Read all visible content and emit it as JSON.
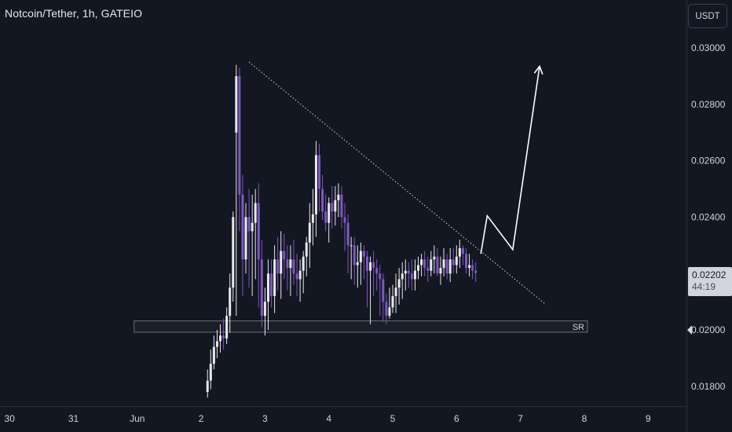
{
  "header": {
    "title": "Notcoin/Tether, 1h, GATEIO",
    "currency_button": "USDT"
  },
  "price_tag": {
    "price": "0.02202",
    "countdown": "44:19"
  },
  "colors": {
    "background": "#131722",
    "up_candle": "#e8e8ec",
    "down_candle": "#7e57c2",
    "grid": "#1e222d",
    "text": "#d1d4dc"
  },
  "chart_data": {
    "type": "candlestick",
    "title": "Notcoin/Tether, 1h, GATEIO",
    "y_ticks": [
      "0.03000",
      "0.02800",
      "0.02600",
      "0.02400",
      "0.02000",
      "0.01800"
    ],
    "y_tick_values": [
      0.03,
      0.028,
      0.026,
      0.024,
      0.02,
      0.018
    ],
    "ylim": [
      0.0173,
      0.0317
    ],
    "x_ticks": [
      "30",
      "31",
      "Jun",
      "2",
      "3",
      "4",
      "5",
      "6",
      "7",
      "8",
      "9"
    ],
    "x_tick_days": [
      -2,
      -1,
      0,
      1,
      2,
      3,
      4,
      5,
      6,
      7,
      8
    ],
    "xlim": [
      -2.15,
      8.6
    ],
    "grid": false,
    "last_price": 0.02202,
    "series": [
      {
        "name": "",
        "x_days": [
          1.1,
          1.15,
          1.2,
          1.25,
          1.3,
          1.35,
          1.4,
          1.45,
          1.5,
          1.55,
          1.6,
          1.65,
          1.7,
          1.75,
          1.8,
          1.85,
          1.9,
          1.95,
          2.0,
          2.05,
          2.1,
          2.15,
          2.2,
          2.25,
          2.3,
          2.35,
          2.4,
          2.45,
          2.5,
          2.55,
          2.6,
          2.65,
          2.7,
          2.75,
          2.8,
          2.85,
          2.9,
          2.95,
          3.0,
          3.05,
          3.1,
          3.15,
          3.2,
          3.25,
          3.3,
          3.35,
          3.4,
          3.45,
          3.5,
          3.55,
          3.6,
          3.65,
          3.7,
          3.75,
          3.8,
          3.85,
          3.9,
          3.95,
          4.0,
          4.05,
          4.1,
          4.15,
          4.2,
          4.25,
          4.3,
          4.35,
          4.4,
          4.45,
          4.5,
          4.55,
          4.6,
          4.65,
          4.7,
          4.75,
          4.8,
          4.85,
          4.9,
          4.95,
          5.0,
          5.05,
          5.1,
          5.15,
          5.2,
          5.25,
          5.3
        ],
        "open": [
          0.0178,
          0.0182,
          0.0188,
          0.0194,
          0.0196,
          0.0198,
          0.0197,
          0.0205,
          0.0215,
          0.027,
          0.029,
          0.0248,
          0.0225,
          0.024,
          0.0235,
          0.0238,
          0.0245,
          0.0225,
          0.0205,
          0.021,
          0.022,
          0.0212,
          0.0225,
          0.022,
          0.0228,
          0.0225,
          0.0222,
          0.0225,
          0.022,
          0.0218,
          0.0221,
          0.0226,
          0.0231,
          0.0238,
          0.0241,
          0.0262,
          0.025,
          0.0242,
          0.0238,
          0.0245,
          0.0242,
          0.0246,
          0.0248,
          0.024,
          0.0238,
          0.023,
          0.023,
          0.0223,
          0.0224,
          0.0228,
          0.0226,
          0.0221,
          0.0224,
          0.0222,
          0.022,
          0.0218,
          0.021,
          0.0205,
          0.0208,
          0.0212,
          0.0215,
          0.0218,
          0.022,
          0.0221,
          0.022,
          0.0218,
          0.0221,
          0.0223,
          0.0225,
          0.0222,
          0.0221,
          0.0225,
          0.0226,
          0.022,
          0.0222,
          0.0225,
          0.022,
          0.0225,
          0.0223,
          0.0226,
          0.0229,
          0.0227,
          0.0222,
          0.0223,
          0.0221
        ],
        "high": [
          0.0186,
          0.0193,
          0.0198,
          0.02,
          0.0202,
          0.0204,
          0.0208,
          0.022,
          0.0242,
          0.0294,
          0.0293,
          0.0255,
          0.0245,
          0.025,
          0.0248,
          0.025,
          0.0252,
          0.0232,
          0.0215,
          0.0225,
          0.0225,
          0.023,
          0.0233,
          0.0235,
          0.0234,
          0.023,
          0.023,
          0.0232,
          0.0227,
          0.0225,
          0.0228,
          0.0233,
          0.0245,
          0.025,
          0.0267,
          0.0266,
          0.0255,
          0.0248,
          0.0247,
          0.0251,
          0.0251,
          0.0252,
          0.0251,
          0.0245,
          0.0241,
          0.0233,
          0.0233,
          0.023,
          0.0231,
          0.023,
          0.0228,
          0.0226,
          0.0228,
          0.0225,
          0.0223,
          0.022,
          0.0213,
          0.0215,
          0.0216,
          0.022,
          0.0222,
          0.0224,
          0.0225,
          0.0224,
          0.0225,
          0.0225,
          0.0226,
          0.0227,
          0.0228,
          0.0226,
          0.0228,
          0.023,
          0.0229,
          0.0226,
          0.0229,
          0.0227,
          0.0229,
          0.0229,
          0.023,
          0.0232,
          0.023,
          0.0229,
          0.0227,
          0.0225,
          0.0224
        ],
        "low": [
          0.0176,
          0.0179,
          0.0186,
          0.019,
          0.0192,
          0.0193,
          0.0195,
          0.0199,
          0.021,
          0.0205,
          0.0235,
          0.0212,
          0.022,
          0.0215,
          0.0212,
          0.0218,
          0.0208,
          0.0201,
          0.0198,
          0.02,
          0.0208,
          0.0206,
          0.0214,
          0.0211,
          0.0218,
          0.0214,
          0.0212,
          0.0216,
          0.0212,
          0.021,
          0.0213,
          0.0219,
          0.0222,
          0.023,
          0.0233,
          0.0242,
          0.0239,
          0.0235,
          0.0231,
          0.0236,
          0.0237,
          0.024,
          0.0236,
          0.0228,
          0.022,
          0.0218,
          0.0216,
          0.0215,
          0.0216,
          0.0218,
          0.0208,
          0.0202,
          0.0212,
          0.0214,
          0.0205,
          0.0203,
          0.0202,
          0.0204,
          0.0206,
          0.0206,
          0.0209,
          0.0211,
          0.0214,
          0.0215,
          0.0214,
          0.0214,
          0.0218,
          0.0219,
          0.0219,
          0.0217,
          0.0219,
          0.022,
          0.0219,
          0.0216,
          0.0219,
          0.0218,
          0.0217,
          0.022,
          0.022,
          0.0222,
          0.0223,
          0.022,
          0.0219,
          0.0218,
          0.0217
        ],
        "close": [
          0.0182,
          0.0188,
          0.0194,
          0.0196,
          0.0198,
          0.0197,
          0.0205,
          0.0215,
          0.024,
          0.029,
          0.0248,
          0.0225,
          0.024,
          0.0235,
          0.0238,
          0.0245,
          0.0225,
          0.0205,
          0.021,
          0.022,
          0.0212,
          0.0225,
          0.022,
          0.0228,
          0.0225,
          0.0222,
          0.0225,
          0.022,
          0.0218,
          0.0221,
          0.0226,
          0.0231,
          0.0238,
          0.0241,
          0.0262,
          0.025,
          0.0242,
          0.0238,
          0.0245,
          0.0242,
          0.0246,
          0.0248,
          0.024,
          0.0238,
          0.023,
          0.023,
          0.0223,
          0.0224,
          0.0228,
          0.0226,
          0.0221,
          0.0224,
          0.0222,
          0.022,
          0.0218,
          0.021,
          0.0205,
          0.0208,
          0.0212,
          0.0215,
          0.0218,
          0.022,
          0.0221,
          0.022,
          0.0218,
          0.0221,
          0.0223,
          0.0225,
          0.0222,
          0.0221,
          0.0225,
          0.0226,
          0.022,
          0.0222,
          0.0225,
          0.022,
          0.0225,
          0.0223,
          0.0226,
          0.0229,
          0.0227,
          0.0222,
          0.0223,
          0.0221,
          0.02202
        ]
      }
    ],
    "annotations": {
      "trendline": {
        "from": [
          1.75,
          0.0295
        ],
        "to": [
          6.4,
          0.0209
        ],
        "style": "dotted"
      },
      "support_zone": {
        "label": "SR",
        "x_from": [
          -0.05,
          7.05
        ],
        "price_top": 0.02032,
        "price_bottom": 0.01992
      },
      "projection_path": [
        [
          5.38,
          0.0227
        ],
        [
          5.48,
          0.02405
        ],
        [
          5.88,
          0.02285
        ],
        [
          6.3,
          0.02935
        ]
      ]
    }
  }
}
